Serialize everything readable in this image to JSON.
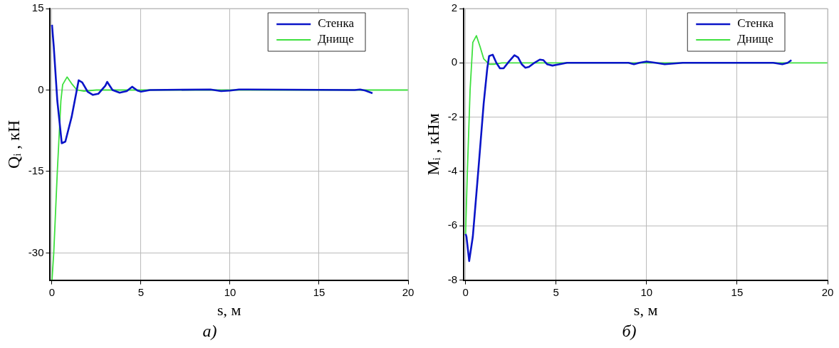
{
  "chart_data": [
    {
      "type": "line",
      "xlabel": "s, м",
      "ylabel": "Qᵢ , кН",
      "annotations": [
        "а)"
      ],
      "xlim": [
        -0.1,
        20
      ],
      "xticks": [
        0,
        5,
        10,
        15,
        20
      ],
      "ylim": [
        -35,
        15
      ],
      "yticks": [
        -30,
        -15,
        0,
        15
      ],
      "grid": true,
      "legend": "top right",
      "marker": "none",
      "line_style": "solid",
      "series": [
        {
          "name": "Стенка",
          "color": "#0a14c8",
          "x": [
            0,
            0.1,
            0.3,
            0.55,
            0.75,
            1.1,
            1.5,
            1.7,
            2.0,
            2.3,
            2.6,
            3.0,
            3.1,
            3.4,
            3.8,
            4.2,
            4.5,
            4.8,
            5.0,
            5.5,
            8.9,
            9.5,
            10.0,
            10.5,
            11,
            17,
            17.3,
            17.6,
            18
          ],
          "values": [
            12,
            8,
            -2,
            -9.8,
            -9.5,
            -5,
            1.8,
            1.4,
            -0.3,
            -0.9,
            -0.7,
            0.8,
            1.5,
            0,
            -0.5,
            -0.2,
            0.6,
            -0.1,
            -0.3,
            0,
            0.1,
            -0.2,
            -0.1,
            0.1,
            0.1,
            0,
            0.1,
            -0.1,
            -0.6
          ]
        },
        {
          "name": "Днище",
          "color": "#3ee03e",
          "x": [
            0,
            0.1,
            0.3,
            0.5,
            0.6,
            0.85,
            1.1,
            1.4,
            1.8,
            2.5,
            20
          ],
          "values": [
            -35,
            -30,
            -15,
            -2,
            1,
            2.4,
            1.2,
            0,
            -0.2,
            0,
            0
          ]
        }
      ]
    },
    {
      "type": "line",
      "xlabel": "s, м",
      "ylabel": "Mᵢ , кНм",
      "annotations": [
        "б)"
      ],
      "xlim": [
        -0.1,
        20
      ],
      "xticks": [
        0,
        5,
        10,
        15,
        20
      ],
      "ylim": [
        -8,
        2
      ],
      "yticks": [
        -8,
        -6,
        -4,
        -2,
        0,
        2
      ],
      "grid": true,
      "legend": "top right",
      "marker": "none",
      "line_style": "solid",
      "series": [
        {
          "name": "Стенка",
          "color": "#0a14c8",
          "x": [
            0,
            0.05,
            0.2,
            0.4,
            0.7,
            1.0,
            1.2,
            1.3,
            1.5,
            1.7,
            1.9,
            2.1,
            2.4,
            2.7,
            2.9,
            3.1,
            3.3,
            3.5,
            3.8,
            4.1,
            4.3,
            4.5,
            4.8,
            5.2,
            5.6,
            9,
            9.3,
            9.6,
            10,
            10.5,
            11,
            12,
            17,
            17.5,
            17.8,
            18
          ],
          "values": [
            -6.3,
            -6.4,
            -7.3,
            -6.4,
            -4,
            -1.5,
            -0.2,
            0.25,
            0.3,
            0,
            -0.2,
            -0.2,
            0.05,
            0.28,
            0.2,
            -0.05,
            -0.18,
            -0.15,
            0,
            0.12,
            0.1,
            -0.05,
            -0.1,
            -0.05,
            0,
            0,
            -0.05,
            0,
            0.05,
            0,
            -0.05,
            0,
            0,
            -0.05,
            0,
            0.1
          ]
        },
        {
          "name": "Днище",
          "color": "#3ee03e",
          "x": [
            0,
            0.1,
            0.25,
            0.4,
            0.6,
            0.8,
            1.0,
            1.3,
            1.6,
            2,
            20
          ],
          "values": [
            -6.3,
            -4,
            -1,
            0.75,
            1.0,
            0.6,
            0.15,
            -0.05,
            -0.05,
            0,
            0
          ]
        }
      ]
    }
  ]
}
